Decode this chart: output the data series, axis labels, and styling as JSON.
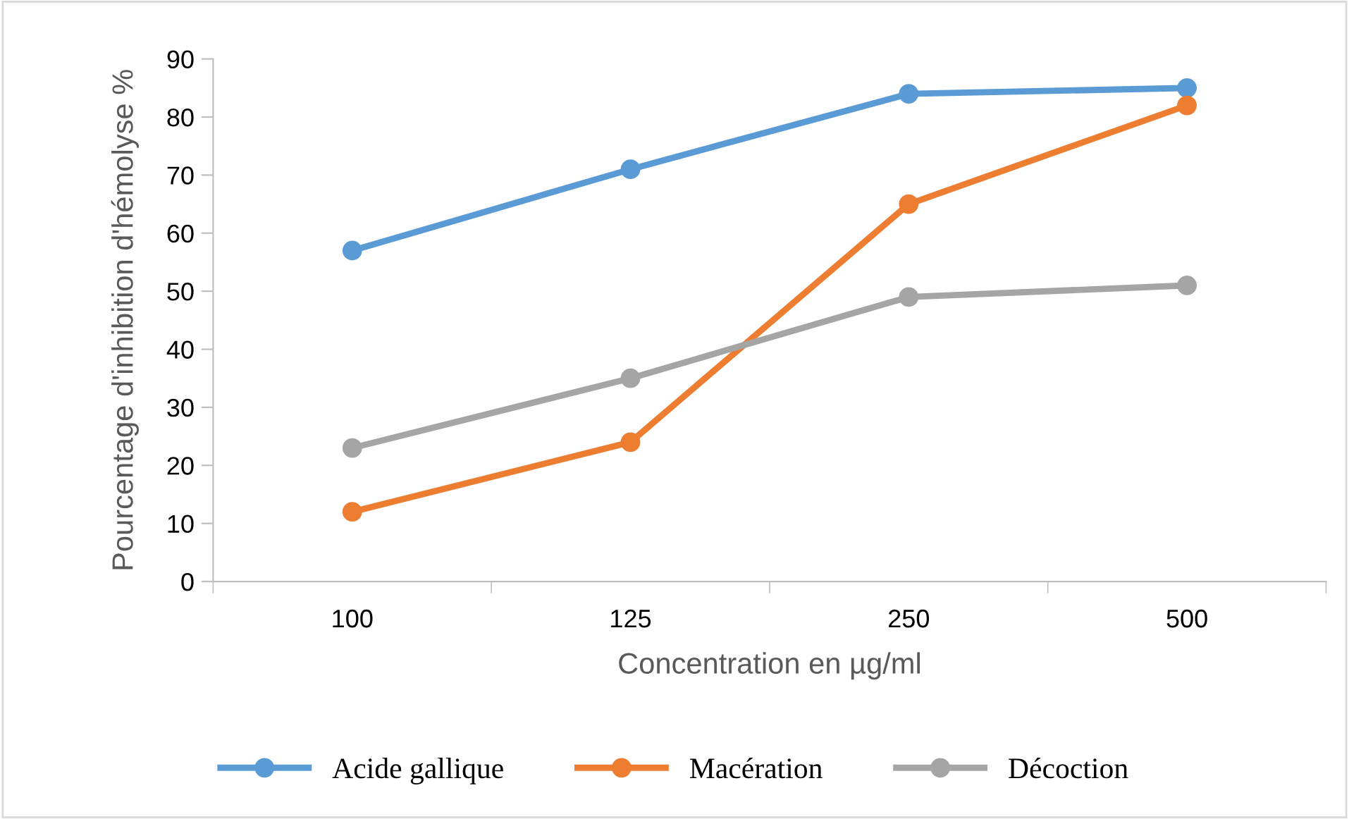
{
  "chart_data": {
    "type": "line",
    "xlabel": "Concentration en µg/ml",
    "ylabel": "Pourcentage d'inhibition d'hémolyse %",
    "categories": [
      "100",
      "125",
      "250",
      "500"
    ],
    "series": [
      {
        "name": "Acide gallique",
        "color": "#5b9bd5",
        "values": [
          57,
          71,
          84,
          85
        ]
      },
      {
        "name": "Macération",
        "color": "#ed7d31",
        "values": [
          12,
          24,
          65,
          82
        ]
      },
      {
        "name": "Décoction",
        "color": "#a5a5a5",
        "values": [
          23,
          35,
          49,
          51
        ]
      }
    ],
    "ylim": [
      0,
      90
    ],
    "yticks": [
      0,
      10,
      20,
      30,
      40,
      50,
      60,
      70,
      80,
      90
    ],
    "grid": false,
    "legend": "bottom",
    "marker": "circle",
    "line_style": "solid"
  }
}
